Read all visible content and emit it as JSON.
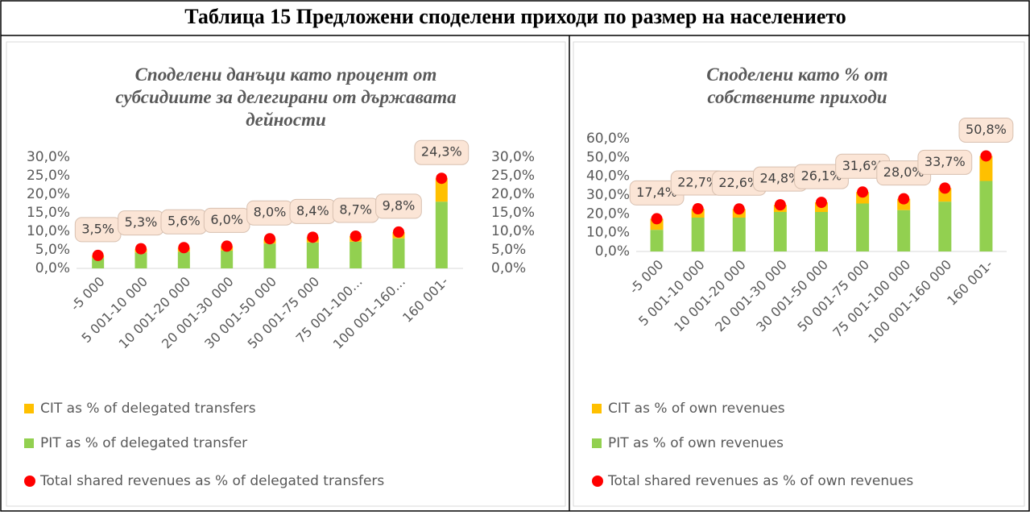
{
  "title": "Таблица 15 Предложени споделени приходи по размер на населението",
  "chart_data": [
    {
      "type": "bar",
      "stacked": true,
      "title": "Споделени данъци като процент от субсидиите за делегирани от държавата дейности",
      "categories": [
        "-5 000",
        "5 001-10 000",
        "10 001-20 000",
        "20 001-30 000",
        "30 001-50 000",
        "50 001-75 000",
        "75 001-100…",
        "100 001-160…",
        "160 001-"
      ],
      "series": [
        {
          "name": "PIT as % of delegated transfer",
          "color": "#92d050",
          "values": [
            2.8,
            4.3,
            4.5,
            4.8,
            6.7,
            7.0,
            7.2,
            8.1,
            18.0
          ]
        },
        {
          "name": "CIT as % of delegated transfers",
          "color": "#ffc000",
          "values": [
            0.7,
            1.0,
            1.1,
            1.2,
            1.3,
            1.4,
            1.5,
            1.7,
            6.3
          ]
        },
        {
          "name": "Total shared revenues as % of delegated transfers",
          "color": "#ff0000",
          "type": "point",
          "values": [
            3.5,
            5.3,
            5.6,
            6.0,
            8.0,
            8.4,
            8.7,
            9.8,
            24.3
          ],
          "value_labels": [
            "3,5%",
            "5,3%",
            "5,6%",
            "6,0%",
            "8,0%",
            "8,4%",
            "8,7%",
            "9,8%",
            "24,3%"
          ]
        }
      ],
      "ylim": [
        0,
        30
      ],
      "yticks": [
        {
          "value": 0,
          "label": "0,0%"
        },
        {
          "value": 5,
          "label": "5,0%"
        },
        {
          "value": 10,
          "label": "10,0%"
        },
        {
          "value": 15,
          "label": "15,0%"
        },
        {
          "value": 20,
          "label": "20,0%"
        },
        {
          "value": 25,
          "label": "25,0%"
        },
        {
          "value": 30,
          "label": "30,0%"
        }
      ],
      "y2lim": [
        0,
        30
      ],
      "y2ticks": [
        {
          "value": 0,
          "label": "0,0%"
        },
        {
          "value": 5,
          "label": "5,0%"
        },
        {
          "value": 10,
          "label": "10,0%"
        },
        {
          "value": 15,
          "label": "15,0%"
        },
        {
          "value": 20,
          "label": "20,0%"
        },
        {
          "value": 25,
          "label": "25,0%"
        },
        {
          "value": 30,
          "label": "30,0%"
        }
      ]
    },
    {
      "type": "bar",
      "stacked": true,
      "title": "Споделени като % от собствените приходи",
      "categories": [
        "-5 000",
        "5 001-10 000",
        "10 001-20 000",
        "20 001-30 000",
        "30 001-50 000",
        "50 001-75 000",
        "75 001-100 000",
        "100 001-160 000",
        "160 001-"
      ],
      "series": [
        {
          "name": "PIT as % of own revenues",
          "color": "#92d050",
          "values": [
            11.5,
            18.0,
            18.0,
            21.0,
            21.0,
            25.5,
            22.0,
            26.5,
            37.5
          ]
        },
        {
          "name": "CIT as  % of own revenues",
          "color": "#ffc000",
          "values": [
            5.9,
            4.7,
            4.6,
            3.8,
            5.1,
            6.1,
            6.0,
            7.2,
            13.3
          ]
        },
        {
          "name": "Total shared revenues as % of own revenues",
          "color": "#ff0000",
          "type": "point",
          "values": [
            17.4,
            22.7,
            22.6,
            24.8,
            26.1,
            31.6,
            28.0,
            33.7,
            50.8
          ],
          "value_labels": [
            "17,4%",
            "22,7%",
            "22,6%",
            "24,8%",
            "26,1%",
            "31,6%",
            "28,0%",
            "33,7%",
            "50,8%"
          ]
        }
      ],
      "ylim": [
        0,
        60
      ],
      "yticks": [
        {
          "value": 0,
          "label": "0,0%"
        },
        {
          "value": 10,
          "label": "10,0%"
        },
        {
          "value": 20,
          "label": "20,0%"
        },
        {
          "value": 30,
          "label": "30,0%"
        },
        {
          "value": 40,
          "label": "40,0%"
        },
        {
          "value": 50,
          "label": "50,0%"
        },
        {
          "value": 60,
          "label": "60,0%"
        }
      ]
    }
  ]
}
